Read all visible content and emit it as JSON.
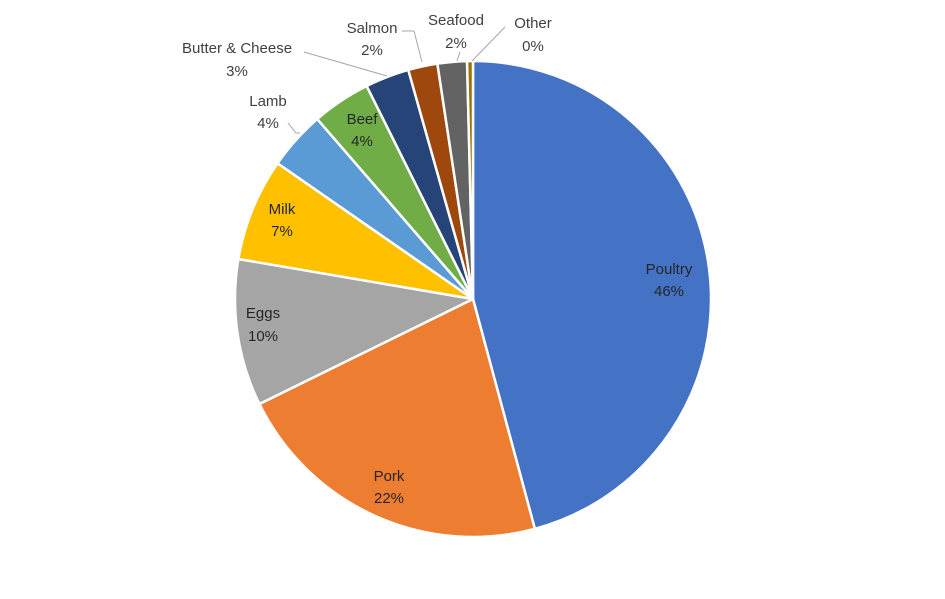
{
  "chart_data": {
    "type": "pie",
    "title": "",
    "start_angle_deg": 0,
    "direction": "clockwise",
    "slices": [
      {
        "label": "Poultry",
        "value": 46,
        "display": "46%",
        "color": "#4472C4"
      },
      {
        "label": "Pork",
        "value": 22,
        "display": "22%",
        "color": "#ED7D31"
      },
      {
        "label": "Eggs",
        "value": 10,
        "display": "10%",
        "color": "#A5A5A5"
      },
      {
        "label": "Milk",
        "value": 7,
        "display": "7%",
        "color": "#FFC000"
      },
      {
        "label": "Lamb",
        "value": 4,
        "display": "4%",
        "color": "#5B9BD5"
      },
      {
        "label": "Beef",
        "value": 4,
        "display": "4%",
        "color": "#70AD47"
      },
      {
        "label": "Butter & Cheese",
        "value": 3,
        "display": "3%",
        "color": "#264478"
      },
      {
        "label": "Salmon",
        "value": 2,
        "display": "2%",
        "color": "#9E480E"
      },
      {
        "label": "Seafood",
        "value": 2,
        "display": "2%",
        "color": "#636363"
      },
      {
        "label": "Other",
        "value": 0.4,
        "display": "0%",
        "color": "#997300"
      }
    ],
    "legend": "none"
  }
}
